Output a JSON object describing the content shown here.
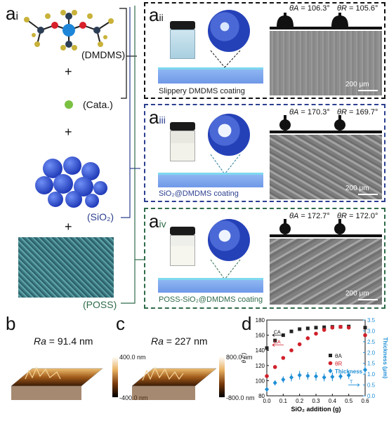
{
  "labels": {
    "ai": "a",
    "ai_sub": "i",
    "aii": "a",
    "aii_sub": "ii",
    "aiii": "a",
    "aiii_sub": "iii",
    "aiv": "a",
    "aiv_sub": "iv",
    "b": "b",
    "c": "c",
    "d": "d"
  },
  "components": {
    "dmdms": "(DMDMS)",
    "cata": "(Cata.)",
    "sio2": "(SiO₂)",
    "poss": "(POSS)",
    "plus": "+"
  },
  "panels": [
    {
      "coating": "Slippery DMDMS coating",
      "theta_a_sym": "θA",
      "theta_a": " = 106.3°",
      "theta_r_sym": "θR",
      "theta_r": " = 105.6°",
      "scale": "200 μm",
      "coating_color": "#222222"
    },
    {
      "coating": "SiO₂@DMDMS coating",
      "theta_a_sym": "θA",
      "theta_a": " = 170.3°",
      "theta_r_sym": "θR",
      "theta_r": " = 169.7°",
      "scale": "200 μm",
      "coating_color": "#2b3f8f"
    },
    {
      "coating": "POSS-SiO₂@DMDMS coating",
      "theta_a_sym": "θA",
      "theta_a": " = 172.7°",
      "theta_r_sym": "θR",
      "theta_r": " = 172.0°",
      "scale": "200 μm",
      "coating_color": "#2f6b4a"
    }
  ],
  "afm": [
    {
      "ra_label": "Ra",
      "ra_value": " = 91.4 nm",
      "cbar_top": "400.0 nm",
      "cbar_bottom": "-400.0 nm"
    },
    {
      "ra_label": "Ra",
      "ra_value": " = 227 nm",
      "cbar_top": "800.0 nm",
      "cbar_bottom": "-800.0 nm"
    }
  ],
  "chart_data": {
    "type": "scatter",
    "xlabel": "SiO₂ addition (g)",
    "ylabel_left": "θ (°)",
    "ylabel_right": "Thickness (μm)",
    "xlim": [
      0.0,
      0.6
    ],
    "ylim_left": [
      80,
      180
    ],
    "ylim_right": [
      0.0,
      3.5
    ],
    "x_ticks": [
      "0.0",
      "0.1",
      "0.2",
      "0.3",
      "0.4",
      "0.5",
      "0.6"
    ],
    "y_left_ticks": [
      "80",
      "100",
      "120",
      "140",
      "160",
      "180"
    ],
    "y_right_ticks": [
      "0.0",
      "0.5",
      "1.0",
      "1.5",
      "2.0",
      "2.5",
      "3.0",
      "3.5"
    ],
    "annotations": [
      "CA",
      "CA",
      "T"
    ],
    "series": [
      {
        "name": "θA",
        "axis": "left",
        "color": "#222222",
        "marker": "square",
        "x": [
          0.0,
          0.05,
          0.1,
          0.15,
          0.2,
          0.25,
          0.3,
          0.35,
          0.4,
          0.45,
          0.5,
          0.6
        ],
        "y": [
          143,
          153,
          160,
          165,
          168,
          169,
          170,
          170.5,
          171,
          171,
          171.5,
          170
        ]
      },
      {
        "name": "θR",
        "axis": "left",
        "color": "#d0202a",
        "marker": "circle",
        "x": [
          0.0,
          0.05,
          0.1,
          0.15,
          0.2,
          0.25,
          0.3,
          0.35,
          0.4,
          0.45,
          0.5,
          0.6
        ],
        "y": [
          106,
          118,
          130,
          140,
          148,
          156,
          162,
          167,
          170,
          171,
          170,
          160
        ]
      },
      {
        "name": "Thickness",
        "axis": "right",
        "color": "#1f8fd6",
        "marker": "diamond",
        "x": [
          0.0,
          0.05,
          0.1,
          0.15,
          0.2,
          0.25,
          0.3,
          0.35,
          0.4,
          0.45,
          0.5,
          0.6
        ],
        "y": [
          0.3,
          0.6,
          0.75,
          0.85,
          0.95,
          0.92,
          0.9,
          0.85,
          0.88,
          0.9,
          0.95,
          1.2
        ],
        "err": [
          0.1,
          0.12,
          0.15,
          0.18,
          0.2,
          0.18,
          0.2,
          0.18,
          0.2,
          0.15,
          0.18,
          0.2
        ]
      }
    ]
  },
  "colors": {
    "frame_black": "#111111",
    "frame_blue": "#2b3f8f",
    "frame_green": "#2f6b4a",
    "substrate_blue": "#6f98e8",
    "substrate_cyan": "#7fd9ef",
    "thickness_blue": "#1f8fd6"
  }
}
